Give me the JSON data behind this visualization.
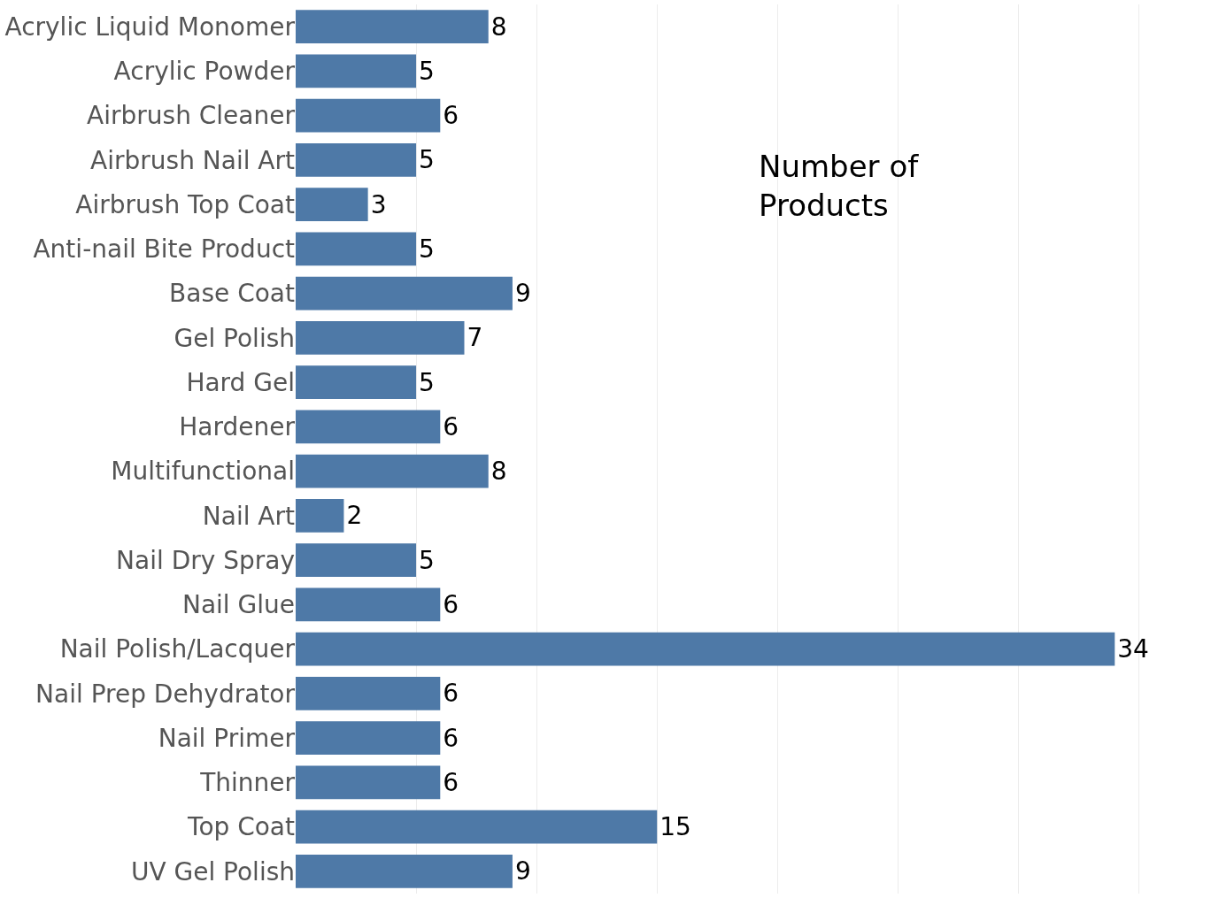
{
  "chart_data": {
    "type": "bar",
    "orientation": "horizontal",
    "categories": [
      "Acrylic Liquid Monomer",
      "Acrylic Powder",
      "Airbrush Cleaner",
      "Airbrush Nail Art",
      "Airbrush Top Coat",
      "Anti-nail Bite Product",
      "Base Coat",
      "Gel Polish",
      "Hard Gel",
      "Hardener",
      "Multifunctional",
      "Nail Art",
      "Nail Dry Spray",
      "Nail Glue",
      "Nail Polish/Lacquer",
      "Nail Prep Dehydrator",
      "Nail Primer",
      "Thinner",
      "Top Coat",
      "UV Gel Polish"
    ],
    "values": [
      8,
      5,
      6,
      5,
      3,
      5,
      9,
      7,
      5,
      6,
      8,
      2,
      5,
      6,
      34,
      6,
      6,
      6,
      15,
      9
    ],
    "color": "#4e79a7",
    "data_labels": true,
    "grid": "x",
    "tick_labels": "y",
    "annotations": [
      "Number of\nProducts"
    ]
  }
}
